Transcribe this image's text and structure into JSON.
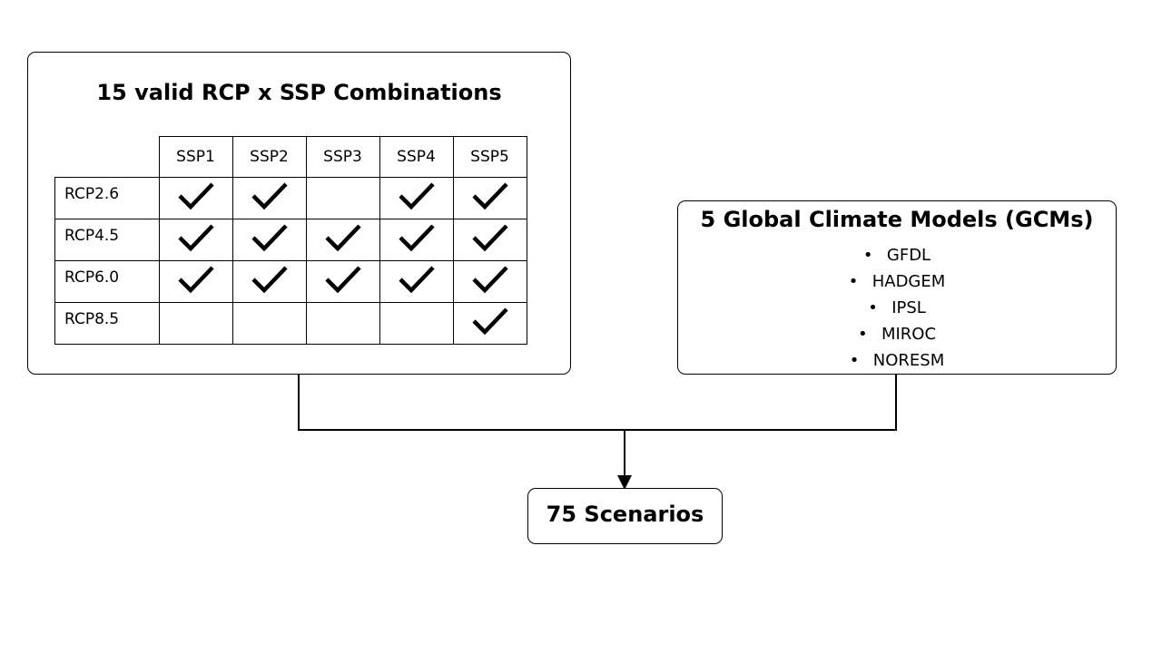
{
  "combinations": {
    "title": "15 valid RCP x SSP Combinations",
    "columns": [
      "SSP1",
      "SSP2",
      "SSP3",
      "SSP4",
      "SSP5"
    ],
    "rows": [
      {
        "label": "RCP2.6",
        "valid": [
          true,
          true,
          false,
          true,
          true
        ]
      },
      {
        "label": "RCP4.5",
        "valid": [
          true,
          true,
          true,
          true,
          true
        ]
      },
      {
        "label": "RCP6.0",
        "valid": [
          true,
          true,
          true,
          true,
          true
        ]
      },
      {
        "label": "RCP8.5",
        "valid": [
          false,
          false,
          false,
          false,
          true
        ]
      }
    ]
  },
  "gcms": {
    "title": "5 Global Climate Models (GCMs)",
    "bullet": "•",
    "items": [
      "GFDL",
      "HADGEM",
      "IPSL",
      "MIROC",
      "NORESM"
    ]
  },
  "result": {
    "title": "75 Scenarios"
  },
  "colors": {
    "line": "#000000",
    "background": "#ffffff"
  },
  "icons": {
    "valid_mark": "checkmark-icon"
  }
}
